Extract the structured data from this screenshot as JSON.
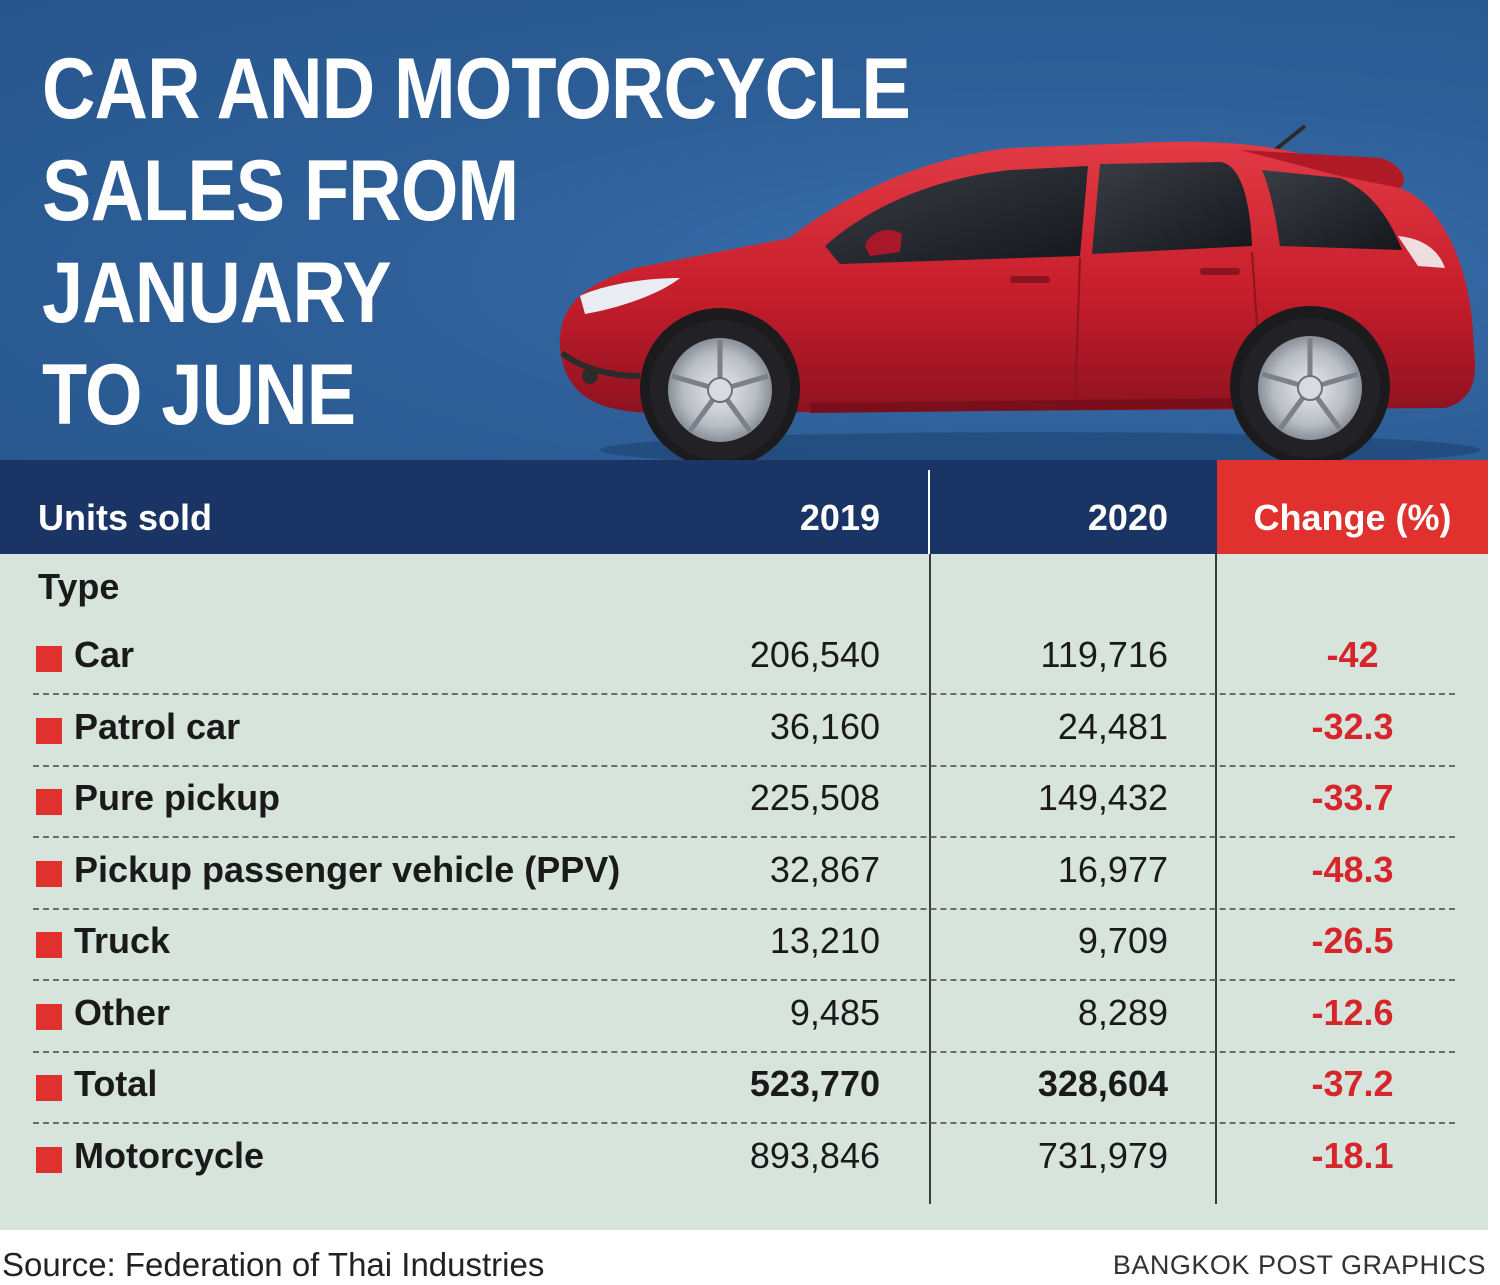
{
  "title_lines": [
    "CAR AND MOTORCYCLE",
    "SALES FROM",
    "JANUARY",
    "TO JUNE"
  ],
  "colors": {
    "banner_blue": "#2e5f98",
    "header_navy": "#1a3465",
    "accent_red": "#e0312f",
    "table_green": "#d6e4dc",
    "car_red": "#c81e2c"
  },
  "chart_data": {
    "type": "table",
    "columns": [
      "Units sold",
      "2019",
      "2020",
      "Change (%)"
    ],
    "row_group_label": "Type",
    "rows": [
      {
        "type": "Car",
        "y2019": "206,540",
        "y2020": "119,716",
        "change": "-42",
        "bold": false
      },
      {
        "type": "Patrol car",
        "y2019": "36,160",
        "y2020": "24,481",
        "change": "-32.3",
        "bold": false
      },
      {
        "type": "Pure pickup",
        "y2019": "225,508",
        "y2020": "149,432",
        "change": "-33.7",
        "bold": false
      },
      {
        "type": "Pickup passenger vehicle (PPV)",
        "y2019": "32,867",
        "y2020": "16,977",
        "change": "-48.3",
        "bold": false
      },
      {
        "type": "Truck",
        "y2019": "13,210",
        "y2020": "9,709",
        "change": "-26.5",
        "bold": false
      },
      {
        "type": "Other",
        "y2019": "9,485",
        "y2020": "8,289",
        "change": "-12.6",
        "bold": false
      },
      {
        "type": "Total",
        "y2019": "523,770",
        "y2020": "328,604",
        "change": "-37.2",
        "bold": true
      },
      {
        "type": "Motorcycle",
        "y2019": "893,846",
        "y2020": "731,979",
        "change": "-18.1",
        "bold": false
      }
    ]
  },
  "footer": {
    "source": "Source: Federation of Thai Industries",
    "credit": "BANGKOK POST GRAPHICS"
  },
  "illustration": {
    "icon": "red-hatchback-car-icon"
  }
}
